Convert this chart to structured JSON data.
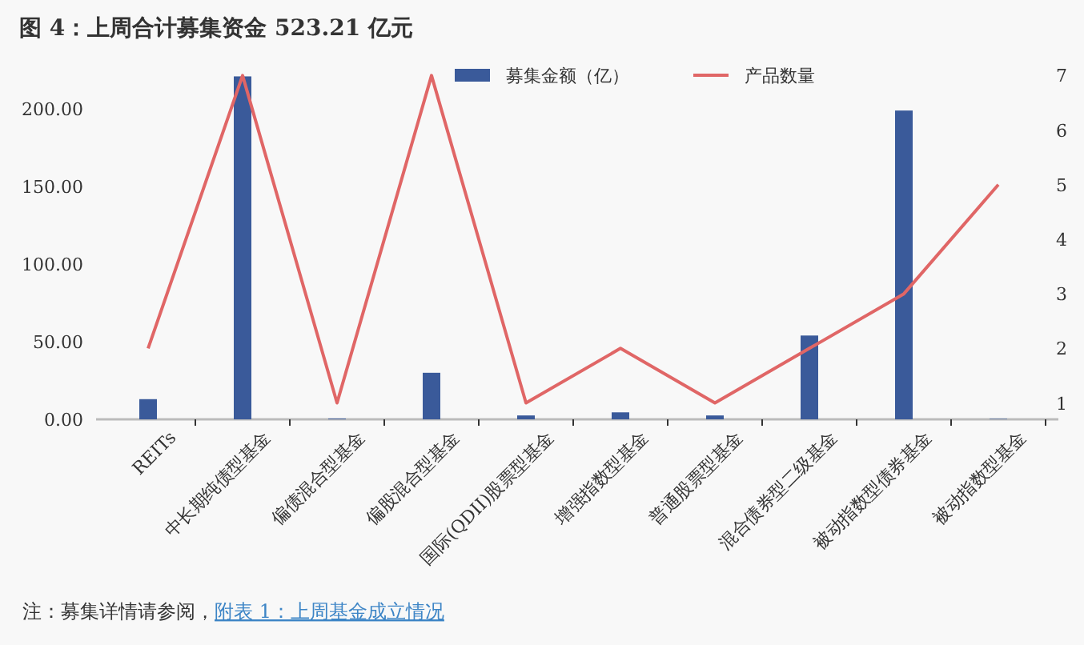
{
  "chart_data": {
    "type": "bar",
    "title": "图 4：上周合计募集资金 523.21 亿元",
    "categories": [
      "REITs",
      "中长期纯债型基金",
      "偏债混合型基金",
      "偏股混合型基金",
      "国际(QDII)股票型基金",
      "增强指数型基金",
      "普通股票型基金",
      "混合债券型二级基金",
      "被动指数型债券基金",
      "被动指数型基金"
    ],
    "series": [
      {
        "name": "募集金额（亿）",
        "color": "#3a5a9a",
        "values": [
          13,
          221,
          0.5,
          30,
          2.5,
          4.5,
          2.5,
          54,
          199,
          0.3
        ]
      },
      {
        "name": "产品数量",
        "type": "line",
        "axis": "y2",
        "color": "#e06666",
        "values": [
          2,
          7,
          1,
          7,
          1,
          2,
          1,
          2,
          3,
          5
        ]
      }
    ],
    "ylim": [
      0,
      230
    ],
    "yticks": [
      {
        "value": 0,
        "label": "0.00"
      },
      {
        "value": 50,
        "label": "50.00"
      },
      {
        "value": 100,
        "label": "100.00"
      },
      {
        "value": 150,
        "label": "150.00"
      },
      {
        "value": 200,
        "label": "200.00"
      }
    ],
    "y2lim": [
      0.7,
      7.24
    ],
    "y2ticks": [
      1,
      2,
      3,
      4,
      5,
      6,
      7
    ],
    "legend": "top",
    "grid": false,
    "marker": "none",
    "annotations": [
      "注：募集详情请参阅，",
      "附表 1：上周基金成立情况"
    ]
  }
}
